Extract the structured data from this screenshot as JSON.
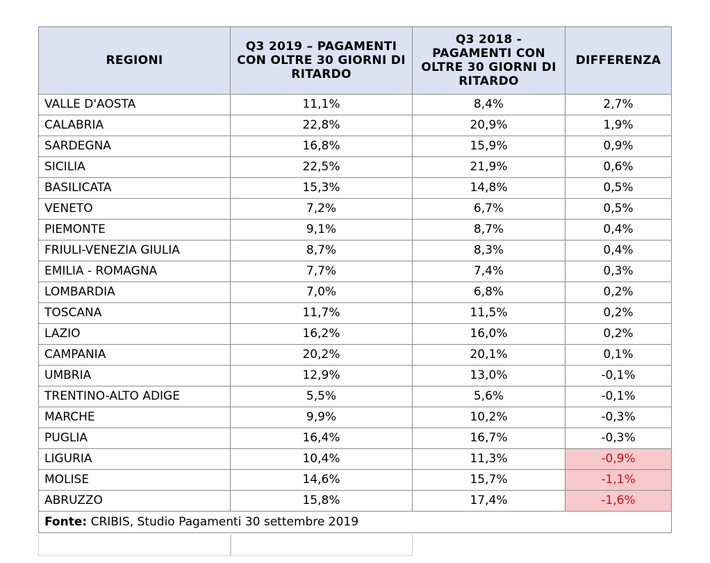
{
  "table": {
    "headers": {
      "region": "REGIONI",
      "q3_2019": "Q3 2019 – PAGAMENTI CON OLTRE 30 GIORNI DI RITARDO",
      "q3_2018": "Q3 2018 - PAGAMENTI CON OLTRE 30 GIORNI DI RITARDO",
      "diff": "DIFFERENZA"
    },
    "rows": [
      {
        "region": "VALLE D'AOSTA",
        "q3_2019": "11,1%",
        "q3_2018": "8,4%",
        "diff": "2,7%",
        "highlight": false
      },
      {
        "region": "CALABRIA",
        "q3_2019": "22,8%",
        "q3_2018": "20,9%",
        "diff": "1,9%",
        "highlight": false
      },
      {
        "region": "SARDEGNA",
        "q3_2019": "16,8%",
        "q3_2018": "15,9%",
        "diff": "0,9%",
        "highlight": false
      },
      {
        "region": "SICILIA",
        "q3_2019": "22,5%",
        "q3_2018": "21,9%",
        "diff": "0,6%",
        "highlight": false
      },
      {
        "region": "BASILICATA",
        "q3_2019": "15,3%",
        "q3_2018": "14,8%",
        "diff": "0,5%",
        "highlight": false
      },
      {
        "region": "VENETO",
        "q3_2019": "7,2%",
        "q3_2018": "6,7%",
        "diff": "0,5%",
        "highlight": false
      },
      {
        "region": "PIEMONTE",
        "q3_2019": "9,1%",
        "q3_2018": "8,7%",
        "diff": "0,4%",
        "highlight": false
      },
      {
        "region": "FRIULI-VENEZIA GIULIA",
        "q3_2019": "8,7%",
        "q3_2018": "8,3%",
        "diff": "0,4%",
        "highlight": false
      },
      {
        "region": "EMILIA - ROMAGNA",
        "q3_2019": "7,7%",
        "q3_2018": "7,4%",
        "diff": "0,3%",
        "highlight": false
      },
      {
        "region": "LOMBARDIA",
        "q3_2019": "7,0%",
        "q3_2018": "6,8%",
        "diff": "0,2%",
        "highlight": false
      },
      {
        "region": "TOSCANA",
        "q3_2019": "11,7%",
        "q3_2018": "11,5%",
        "diff": "0,2%",
        "highlight": false
      },
      {
        "region": "LAZIO",
        "q3_2019": "16,2%",
        "q3_2018": "16,0%",
        "diff": "0,2%",
        "highlight": false
      },
      {
        "region": "CAMPANIA",
        "q3_2019": "20,2%",
        "q3_2018": "20,1%",
        "diff": "0,1%",
        "highlight": false
      },
      {
        "region": "UMBRIA",
        "q3_2019": "12,9%",
        "q3_2018": "13,0%",
        "diff": "-0,1%",
        "highlight": false
      },
      {
        "region": "TRENTINO-ALTO ADIGE",
        "q3_2019": "5,5%",
        "q3_2018": "5,6%",
        "diff": "-0,1%",
        "highlight": false
      },
      {
        "region": "MARCHE",
        "q3_2019": "9,9%",
        "q3_2018": "10,2%",
        "diff": "-0,3%",
        "highlight": false
      },
      {
        "region": "PUGLIA",
        "q3_2019": "16,4%",
        "q3_2018": "16,7%",
        "diff": "-0,3%",
        "highlight": false
      },
      {
        "region": "LIGURIA",
        "q3_2019": "10,4%",
        "q3_2018": "11,3%",
        "diff": "-0,9%",
        "highlight": true
      },
      {
        "region": "MOLISE",
        "q3_2019": "14,6%",
        "q3_2018": "15,7%",
        "diff": "-1,1%",
        "highlight": true
      },
      {
        "region": "ABRUZZO",
        "q3_2019": "15,8%",
        "q3_2018": "17,4%",
        "diff": "-1,6%",
        "highlight": true
      }
    ],
    "source_label": "Fonte:",
    "source_text": " CRIBIS, Studio Pagamenti 30 settembre 2019"
  },
  "colors": {
    "header_bg": "#dbe3f3",
    "highlight_bg": "#f7c9cc",
    "highlight_text": "#c0121a",
    "border": "#8c8c8c"
  }
}
